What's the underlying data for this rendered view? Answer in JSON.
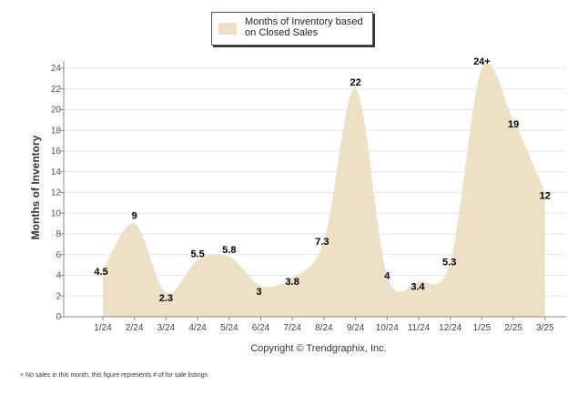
{
  "legend": {
    "label": "Months of Inventory based on Closed Sales"
  },
  "footer": {
    "copyright": "Copyright © Trendgraphix, Inc.",
    "footnote": "+  No sales in this month, this figure represents # of for sale listings"
  },
  "colors": {
    "area_fill": "#ede0c5",
    "grid": "#e6e6e6",
    "axis": "#888888",
    "label_text": "#000000"
  },
  "chart_data": {
    "type": "area",
    "title": "",
    "xlabel": "",
    "ylabel": "Months of Inventory",
    "ylim": [
      0,
      24
    ],
    "yticks": [
      0,
      2,
      4,
      6,
      8,
      10,
      12,
      14,
      16,
      18,
      20,
      22,
      24
    ],
    "grid": true,
    "legend_position": "top",
    "categories": [
      "1/24",
      "2/24",
      "3/24",
      "4/24",
      "5/24",
      "6/24",
      "7/24",
      "8/24",
      "9/24",
      "10/24",
      "11/24",
      "12/24",
      "1/25",
      "2/25",
      "3/25"
    ],
    "series": [
      {
        "name": "Months of Inventory based on Closed Sales",
        "values": [
          4.5,
          9,
          2.3,
          5.5,
          5.8,
          3,
          3.8,
          7.3,
          22,
          4,
          3.4,
          5.3,
          24,
          19,
          12
        ],
        "data_labels": [
          "4.5",
          "9",
          "2.3",
          "5.5",
          "5.8",
          "3",
          "3.8",
          "7.3",
          "22",
          "4",
          "3.4",
          "5.3",
          "24+",
          "19",
          "12"
        ]
      }
    ]
  }
}
